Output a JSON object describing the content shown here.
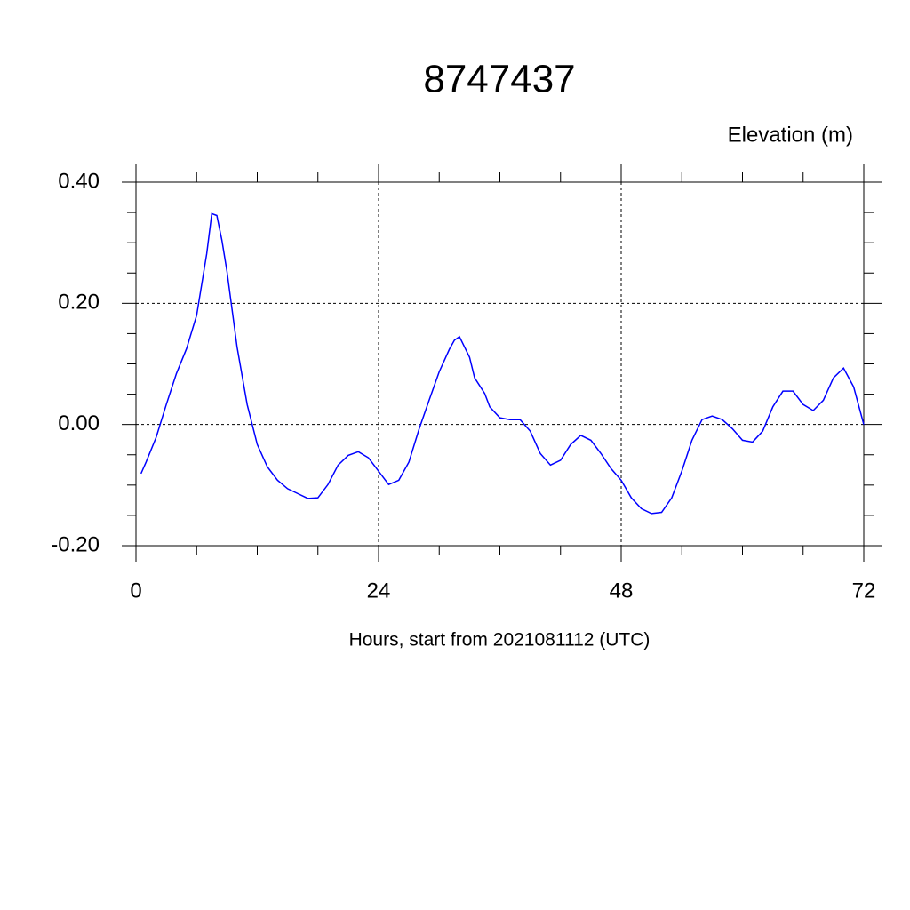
{
  "chart_data": {
    "type": "line",
    "title": "8747437",
    "ylabel": "Elevation (m)",
    "xlabel": "Hours, start from 2021081112 (UTC)",
    "x": [
      0.5,
      1,
      2,
      3,
      4,
      5,
      6,
      7,
      7.5,
      8,
      8.5,
      9,
      10,
      11,
      12,
      13,
      14,
      15,
      16,
      17,
      18,
      19,
      20,
      21,
      22,
      23,
      24,
      25,
      26,
      27,
      28,
      29,
      30,
      31,
      31.5,
      32,
      33,
      33.5,
      34.5,
      35,
      36,
      37,
      38,
      39,
      40,
      41,
      42,
      43,
      44,
      45,
      46,
      47,
      48,
      49,
      50,
      51,
      52,
      53,
      54,
      55,
      56,
      57,
      58,
      59,
      60,
      61,
      62,
      63,
      64,
      65,
      66,
      67,
      68,
      69,
      70,
      71,
      72
    ],
    "series": [
      {
        "name": "Elevation",
        "color": "#0000ff",
        "values": [
          -0.081,
          -0.062,
          -0.021,
          0.033,
          0.084,
          0.125,
          0.18,
          0.282,
          0.348,
          0.345,
          0.304,
          0.253,
          0.128,
          0.033,
          -0.033,
          -0.07,
          -0.092,
          -0.106,
          -0.114,
          -0.122,
          -0.121,
          -0.099,
          -0.067,
          -0.051,
          -0.045,
          -0.055,
          -0.077,
          -0.099,
          -0.092,
          -0.062,
          -0.008,
          0.04,
          0.087,
          0.124,
          0.139,
          0.145,
          0.111,
          0.077,
          0.051,
          0.029,
          0.011,
          0.008,
          0.008,
          -0.011,
          -0.048,
          -0.067,
          -0.059,
          -0.033,
          -0.018,
          -0.026,
          -0.048,
          -0.073,
          -0.092,
          -0.121,
          -0.139,
          -0.147,
          -0.145,
          -0.121,
          -0.077,
          -0.026,
          0.008,
          0.014,
          0.008,
          -0.007,
          -0.026,
          -0.029,
          -0.011,
          0.029,
          0.055,
          0.055,
          0.033,
          0.023,
          0.04,
          0.077,
          0.093,
          0.062,
          0
        ]
      }
    ],
    "xlim": [
      0,
      72
    ],
    "xticks": [
      0,
      24,
      48,
      72
    ],
    "xminorticks": [
      6,
      12,
      18,
      30,
      36,
      42,
      54,
      60,
      66
    ],
    "ylim": [
      -0.2,
      0.4
    ],
    "yticks": [
      {
        "value": -0.2,
        "label": "-0.20"
      },
      {
        "value": 0,
        "label": "0.00"
      },
      {
        "value": 0.2,
        "label": "0.20"
      },
      {
        "value": 0.4,
        "label": "0.40"
      }
    ],
    "yminorticks": [
      -0.15,
      -0.1,
      -0.05,
      0.05,
      0.1,
      0.15,
      0.25,
      0.3,
      0.35
    ],
    "grid": true
  }
}
